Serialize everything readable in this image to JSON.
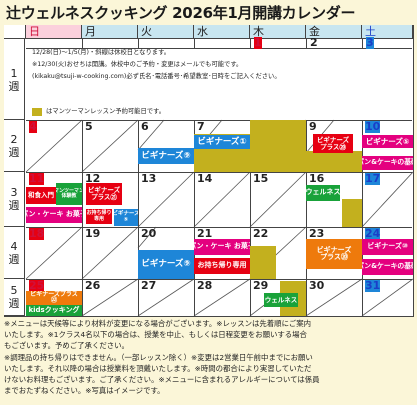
{
  "title": "辻ウェルネスクッキング 2026年1月開講カレンダー",
  "weekdays": [
    "日",
    "月",
    "火",
    "水",
    "木",
    "金",
    "土"
  ],
  "weeks": [
    "1",
    "週",
    "2",
    "週",
    "3",
    "週",
    "4",
    "週",
    "5",
    "週"
  ],
  "dates": {
    "w1": [
      "1",
      "2",
      "3"
    ],
    "w2": [
      "4",
      "5",
      "6",
      "7",
      "8",
      "9",
      "10"
    ],
    "w3": [
      "11",
      "12",
      "13",
      "14",
      "15",
      "16",
      "17"
    ],
    "w4": [
      "18",
      "19",
      "20",
      "21",
      "22",
      "23",
      "24"
    ],
    "w5": [
      "25",
      "26",
      "27",
      "28",
      "29",
      "30",
      "31"
    ]
  },
  "notes": {
    "line1": "12/28(日)〜1/5(月)・斜線は休校日となります。",
    "line2": "※12/30(火)おせちは開講。休校中のご予約・変更はメールでも可能です。",
    "line3": "(kikaku@tsuji-w-cooking.com)必ず氏名･電話番号･希望教室･日時をご記入ください。",
    "legend": "はマンツーマンレッスン予約可能日です。"
  },
  "events": {
    "w2_tue": "ビギナーズ⑨",
    "w2_wed": "ビギナーズ①",
    "w2_fri": "ビギナーズ\nプラス⑳",
    "w2_sat_top": "ビギナーズ⑤",
    "w2_sat_bot": "パン&ケーキの基礎",
    "w3_sun_top": "和食入門",
    "w3_sun_bot": "パン・ケーキ お菓子",
    "w3_mon_top": "マンツーマン\n体験教",
    "w3_mon_mid": "お持ち帰り\n専用",
    "w3_tue_top": "ビギナーズ\nプラス㉑",
    "w3_tue_bot": "ビギナーズ\n⑤",
    "w3_fri": "ウェルネス",
    "w4_tue": "ビギナーズ⑨",
    "w4_wed": "パン・ケーキ お菓子",
    "w4_wed_bot": "お持ち帰り専用",
    "w4_fri": "ビギナーズ\nプラス⑳",
    "w4_sat_top": "ビギナーズ⑩",
    "w4_sat_bot": "パン&ケーキの基礎",
    "w5_sun_top": "ビギナーズプラス\n㉒",
    "w5_sun_bot": "kidsクッキング",
    "w5_thu": "ウェルネス"
  },
  "footer": [
    "※メニューは天候等により材料が変更になる場合がございます。※レッスンは先着順にご案内",
    "いたします。※1クラス4名以下の場合は、授業を中止、もしくは日程変更をお願いする場合",
    "もございます。予めご了承ください。",
    "※調理品の持ち帰りはできません。（一部レッスン除く）※変更は2営業日午前中までにお願い",
    "いたします。それ以降の場合は授業料を頂戴いたします。※時間の都合により実習していただ",
    "けないお料理もございます。ご了承ください。※メニューに含まれるアレルギーについては係員",
    "までおたずねください。※写真はイメージです。"
  ]
}
